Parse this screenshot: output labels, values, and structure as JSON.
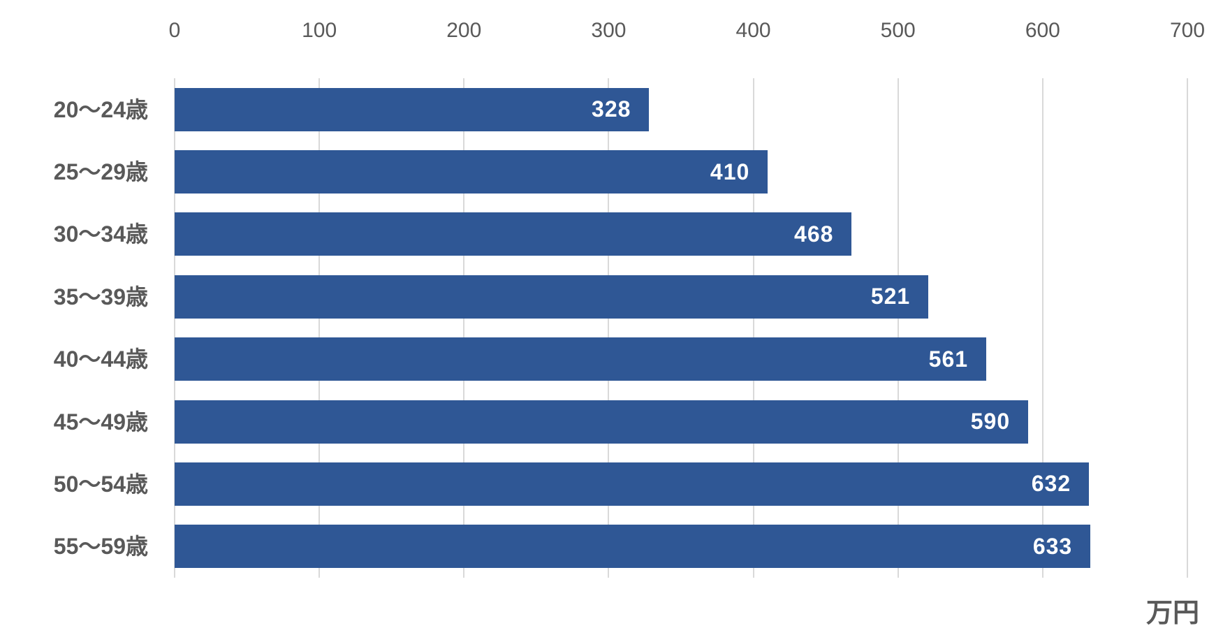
{
  "chart_data": {
    "type": "bar",
    "orientation": "horizontal",
    "title": "",
    "categories": [
      "20～24歳",
      "25～29歳",
      "30～34歳",
      "35～39歳",
      "40～44歳",
      "45～49歳",
      "50～54歳",
      "55～59歳"
    ],
    "values": [
      328,
      410,
      468,
      521,
      561,
      590,
      632,
      633
    ],
    "unit_label": "万円",
    "xlabel": "",
    "ylabel": "",
    "xlim": [
      0,
      700
    ],
    "xticks": [
      0,
      100,
      200,
      300,
      400,
      500,
      600,
      700
    ],
    "grid": "vertical",
    "legend": "none",
    "axis_position": "top",
    "colors": {
      "bar": "#2F5795",
      "gridline": "#D9D9D9",
      "axis_text": "#595959",
      "category_text": "#595959",
      "value_label_text": "#FFFFFF",
      "background": "#FFFFFF"
    }
  }
}
